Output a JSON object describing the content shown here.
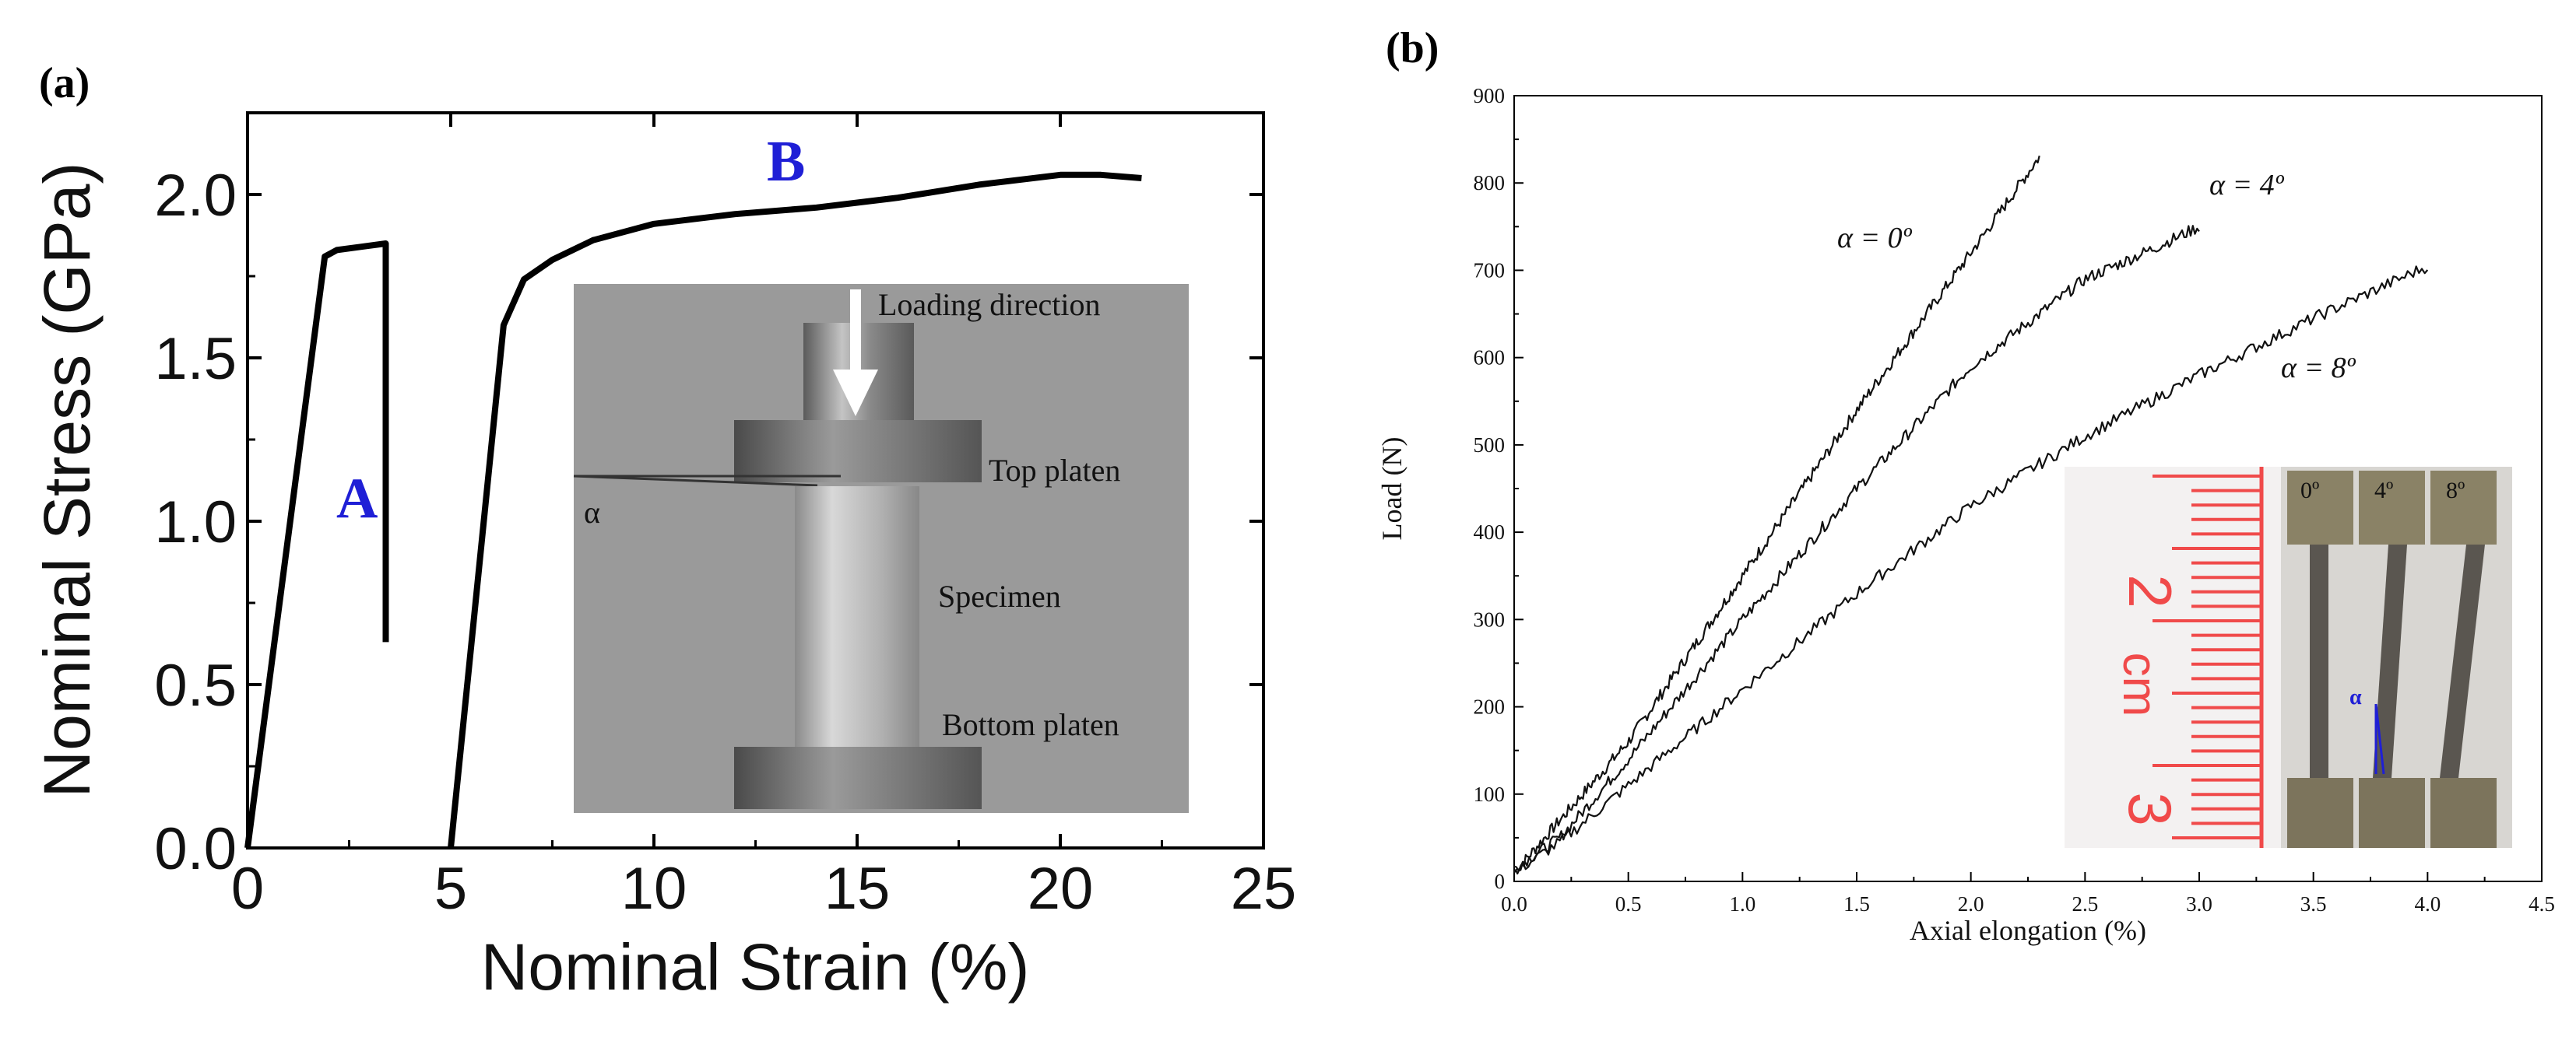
{
  "chart_data": [
    {
      "panel": "(a)",
      "type": "line",
      "xlabel": "Nominal Strain (%)",
      "ylabel": "Nominal Stress (GPa)",
      "xlim": [
        0,
        25
      ],
      "ylim": [
        0,
        2.25
      ],
      "xticks": [
        "0",
        "5",
        "10",
        "15",
        "20",
        "25"
      ],
      "yticks": [
        "0.0",
        "0.5",
        "1.0",
        "1.5",
        "2.0"
      ],
      "series": [
        {
          "name": "A",
          "x": [
            0,
            1.9,
            2.2,
            2.8,
            3.4,
            3.4
          ],
          "y": [
            0,
            1.81,
            1.83,
            1.84,
            1.85,
            0.63
          ]
        },
        {
          "name": "B",
          "x": [
            5.0,
            6.3,
            6.8,
            7.5,
            8.5,
            10,
            12,
            14,
            16,
            18,
            20,
            21,
            22
          ],
          "y": [
            0,
            1.6,
            1.74,
            1.8,
            1.86,
            1.91,
            1.94,
            1.96,
            1.99,
            2.03,
            2.06,
            2.06,
            2.05
          ]
        }
      ],
      "annotations": [
        "A",
        "B"
      ],
      "inset": {
        "labels": [
          "Loading direction",
          "Top platen",
          "Specimen",
          "Bottom platen"
        ],
        "angle_label": "α"
      }
    },
    {
      "panel": "(b)",
      "type": "line",
      "xlabel": "Axial elongation (%)",
      "ylabel": "Load (N)",
      "xlim": [
        0,
        4.5
      ],
      "ylim": [
        0,
        900
      ],
      "xticks": [
        "0.0",
        "0.5",
        "1.0",
        "1.5",
        "2.0",
        "2.5",
        "3.0",
        "3.5",
        "4.0",
        "4.5"
      ],
      "yticks": [
        "0",
        "100",
        "200",
        "300",
        "400",
        "500",
        "600",
        "700",
        "800",
        "900"
      ],
      "series": [
        {
          "name": "α = 0º",
          "x": [
            0,
            0.1,
            0.5,
            1.0,
            1.5,
            2.0,
            2.3
          ],
          "y": [
            10,
            40,
            160,
            350,
            540,
            720,
            830
          ]
        },
        {
          "name": "α = 4º",
          "x": [
            0,
            0.2,
            0.5,
            1.0,
            1.5,
            2.0,
            2.5,
            2.8,
            3.0
          ],
          "y": [
            15,
            50,
            140,
            300,
            450,
            590,
            690,
            725,
            750
          ]
        },
        {
          "name": "α = 8º",
          "x": [
            0,
            0.2,
            0.5,
            1.0,
            1.5,
            2.0,
            2.5,
            3.0,
            3.5,
            4.0
          ],
          "y": [
            10,
            45,
            110,
            220,
            330,
            430,
            510,
            580,
            645,
            705
          ]
        }
      ],
      "annotations": [
        "α = 0º",
        "α = 4º",
        "α = 8º"
      ],
      "inset": {
        "ruler_labels": [
          "2",
          "cm",
          "3"
        ],
        "sample_labels": [
          "0º",
          "4º",
          "8º"
        ],
        "angle_label": "α"
      }
    }
  ],
  "colors": {
    "annotation_blue": "#1f1fd6",
    "ruler_red": "#f04a4a",
    "inset_gray": "#9a9a9a"
  }
}
